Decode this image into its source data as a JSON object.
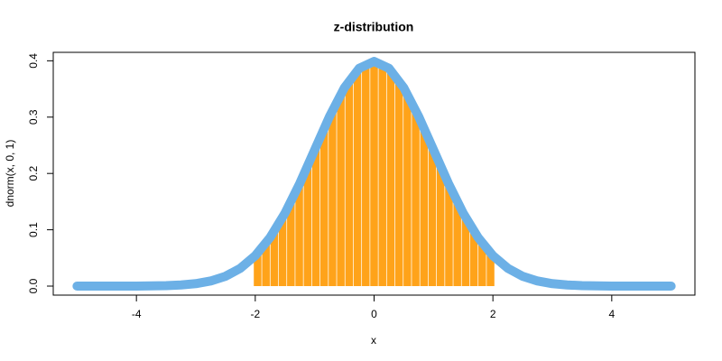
{
  "chart_data": {
    "type": "line",
    "title": "z-distribution",
    "x_label": "x",
    "y_label": "dnorm(x, 0, 1)",
    "x": [
      -5,
      -4.75,
      -4.5,
      -4.25,
      -4,
      -3.75,
      -3.5,
      -3.25,
      -3,
      -2.75,
      -2.5,
      -2.25,
      -2,
      -1.75,
      -1.5,
      -1.25,
      -1,
      -0.75,
      -0.5,
      -0.25,
      0,
      0.25,
      0.5,
      0.75,
      1,
      1.25,
      1.5,
      1.75,
      2,
      2.25,
      2.5,
      2.75,
      3,
      3.25,
      3.5,
      3.75,
      4,
      4.25,
      4.5,
      4.75,
      5
    ],
    "values": [
      0,
      0,
      0,
      0,
      0.0001,
      0.0004,
      0.0009,
      0.002,
      0.0044,
      0.0091,
      0.0175,
      0.0317,
      0.054,
      0.0863,
      0.1295,
      0.1826,
      0.242,
      0.3011,
      0.3521,
      0.3867,
      0.3989,
      0.3867,
      0.3521,
      0.3011,
      0.242,
      0.1826,
      0.1295,
      0.0863,
      0.054,
      0.0317,
      0.0175,
      0.0091,
      0.0044,
      0.002,
      0.0009,
      0.0004,
      0.0001,
      0,
      0,
      0,
      0
    ],
    "color": "#6cb0e6",
    "shade": {
      "color": "#ffa31a",
      "x": [
        -1.96,
        -1.82,
        -1.68,
        -1.54,
        -1.4,
        -1.26,
        -1.12,
        -0.98,
        -0.84,
        -0.7,
        -0.56,
        -0.42,
        -0.28,
        -0.14,
        0,
        0.14,
        0.28,
        0.42,
        0.56,
        0.7,
        0.84,
        0.98,
        1.12,
        1.26,
        1.4,
        1.54,
        1.68,
        1.82,
        1.96
      ],
      "values": [
        0.0584,
        0.0761,
        0.0973,
        0.1219,
        0.1497,
        0.1804,
        0.2131,
        0.2468,
        0.2803,
        0.3123,
        0.341,
        0.3653,
        0.3836,
        0.395,
        0.3989,
        0.395,
        0.3836,
        0.3653,
        0.341,
        0.3123,
        0.2803,
        0.2468,
        0.2131,
        0.1804,
        0.1497,
        0.1219,
        0.0973,
        0.0761,
        0.0584
      ]
    },
    "xlim": [
      -5.4,
      5.4
    ],
    "ylim": [
      -0.016,
      0.415
    ],
    "xticks": [
      -4,
      -2,
      0,
      2,
      4
    ],
    "yticks": [
      {
        "value": 0,
        "label": "0.0"
      },
      0.1,
      0.2,
      0.3,
      0.4
    ]
  }
}
